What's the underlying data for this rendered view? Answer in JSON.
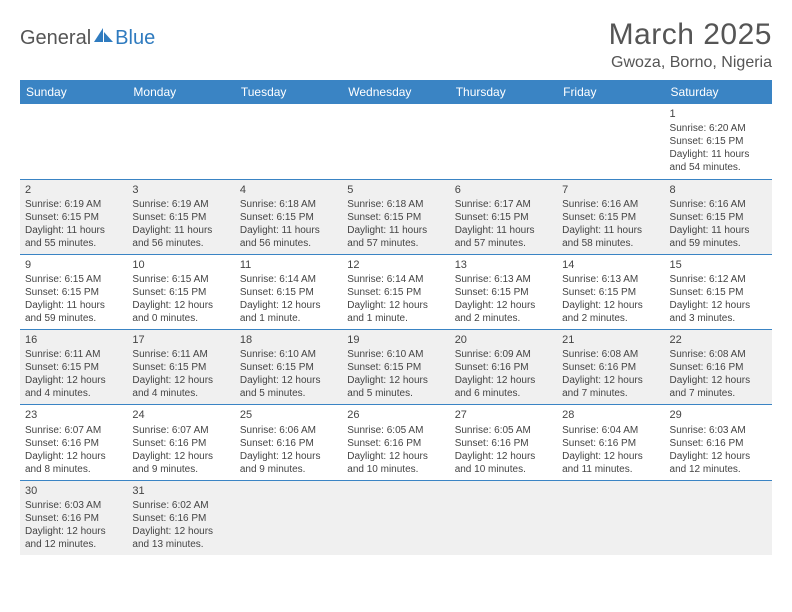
{
  "logo": {
    "text1": "General",
    "text2": "Blue"
  },
  "title": "March 2025",
  "location": "Gwoza, Borno, Nigeria",
  "colors": {
    "header_bg": "#3a84c4",
    "header_text": "#ffffff",
    "border": "#3a84c4",
    "shaded_bg": "#f0f0f0",
    "text": "#444444",
    "logo_gray": "#555555",
    "logo_blue": "#2f7bbf"
  },
  "weekdays": [
    "Sunday",
    "Monday",
    "Tuesday",
    "Wednesday",
    "Thursday",
    "Friday",
    "Saturday"
  ],
  "weeks": [
    [
      {
        "blank": true
      },
      {
        "blank": true
      },
      {
        "blank": true
      },
      {
        "blank": true
      },
      {
        "blank": true
      },
      {
        "blank": true
      },
      {
        "n": "1",
        "sr": "Sunrise: 6:20 AM",
        "ss": "Sunset: 6:15 PM",
        "dl": "Daylight: 11 hours and 54 minutes."
      }
    ],
    [
      {
        "n": "2",
        "sr": "Sunrise: 6:19 AM",
        "ss": "Sunset: 6:15 PM",
        "dl": "Daylight: 11 hours and 55 minutes.",
        "shaded": true
      },
      {
        "n": "3",
        "sr": "Sunrise: 6:19 AM",
        "ss": "Sunset: 6:15 PM",
        "dl": "Daylight: 11 hours and 56 minutes.",
        "shaded": true
      },
      {
        "n": "4",
        "sr": "Sunrise: 6:18 AM",
        "ss": "Sunset: 6:15 PM",
        "dl": "Daylight: 11 hours and 56 minutes.",
        "shaded": true
      },
      {
        "n": "5",
        "sr": "Sunrise: 6:18 AM",
        "ss": "Sunset: 6:15 PM",
        "dl": "Daylight: 11 hours and 57 minutes.",
        "shaded": true
      },
      {
        "n": "6",
        "sr": "Sunrise: 6:17 AM",
        "ss": "Sunset: 6:15 PM",
        "dl": "Daylight: 11 hours and 57 minutes.",
        "shaded": true
      },
      {
        "n": "7",
        "sr": "Sunrise: 6:16 AM",
        "ss": "Sunset: 6:15 PM",
        "dl": "Daylight: 11 hours and 58 minutes.",
        "shaded": true
      },
      {
        "n": "8",
        "sr": "Sunrise: 6:16 AM",
        "ss": "Sunset: 6:15 PM",
        "dl": "Daylight: 11 hours and 59 minutes.",
        "shaded": true
      }
    ],
    [
      {
        "n": "9",
        "sr": "Sunrise: 6:15 AM",
        "ss": "Sunset: 6:15 PM",
        "dl": "Daylight: 11 hours and 59 minutes."
      },
      {
        "n": "10",
        "sr": "Sunrise: 6:15 AM",
        "ss": "Sunset: 6:15 PM",
        "dl": "Daylight: 12 hours and 0 minutes."
      },
      {
        "n": "11",
        "sr": "Sunrise: 6:14 AM",
        "ss": "Sunset: 6:15 PM",
        "dl": "Daylight: 12 hours and 1 minute."
      },
      {
        "n": "12",
        "sr": "Sunrise: 6:14 AM",
        "ss": "Sunset: 6:15 PM",
        "dl": "Daylight: 12 hours and 1 minute."
      },
      {
        "n": "13",
        "sr": "Sunrise: 6:13 AM",
        "ss": "Sunset: 6:15 PM",
        "dl": "Daylight: 12 hours and 2 minutes."
      },
      {
        "n": "14",
        "sr": "Sunrise: 6:13 AM",
        "ss": "Sunset: 6:15 PM",
        "dl": "Daylight: 12 hours and 2 minutes."
      },
      {
        "n": "15",
        "sr": "Sunrise: 6:12 AM",
        "ss": "Sunset: 6:15 PM",
        "dl": "Daylight: 12 hours and 3 minutes."
      }
    ],
    [
      {
        "n": "16",
        "sr": "Sunrise: 6:11 AM",
        "ss": "Sunset: 6:15 PM",
        "dl": "Daylight: 12 hours and 4 minutes.",
        "shaded": true
      },
      {
        "n": "17",
        "sr": "Sunrise: 6:11 AM",
        "ss": "Sunset: 6:15 PM",
        "dl": "Daylight: 12 hours and 4 minutes.",
        "shaded": true
      },
      {
        "n": "18",
        "sr": "Sunrise: 6:10 AM",
        "ss": "Sunset: 6:15 PM",
        "dl": "Daylight: 12 hours and 5 minutes.",
        "shaded": true
      },
      {
        "n": "19",
        "sr": "Sunrise: 6:10 AM",
        "ss": "Sunset: 6:15 PM",
        "dl": "Daylight: 12 hours and 5 minutes.",
        "shaded": true
      },
      {
        "n": "20",
        "sr": "Sunrise: 6:09 AM",
        "ss": "Sunset: 6:16 PM",
        "dl": "Daylight: 12 hours and 6 minutes.",
        "shaded": true
      },
      {
        "n": "21",
        "sr": "Sunrise: 6:08 AM",
        "ss": "Sunset: 6:16 PM",
        "dl": "Daylight: 12 hours and 7 minutes.",
        "shaded": true
      },
      {
        "n": "22",
        "sr": "Sunrise: 6:08 AM",
        "ss": "Sunset: 6:16 PM",
        "dl": "Daylight: 12 hours and 7 minutes.",
        "shaded": true
      }
    ],
    [
      {
        "n": "23",
        "sr": "Sunrise: 6:07 AM",
        "ss": "Sunset: 6:16 PM",
        "dl": "Daylight: 12 hours and 8 minutes."
      },
      {
        "n": "24",
        "sr": "Sunrise: 6:07 AM",
        "ss": "Sunset: 6:16 PM",
        "dl": "Daylight: 12 hours and 9 minutes."
      },
      {
        "n": "25",
        "sr": "Sunrise: 6:06 AM",
        "ss": "Sunset: 6:16 PM",
        "dl": "Daylight: 12 hours and 9 minutes."
      },
      {
        "n": "26",
        "sr": "Sunrise: 6:05 AM",
        "ss": "Sunset: 6:16 PM",
        "dl": "Daylight: 12 hours and 10 minutes."
      },
      {
        "n": "27",
        "sr": "Sunrise: 6:05 AM",
        "ss": "Sunset: 6:16 PM",
        "dl": "Daylight: 12 hours and 10 minutes."
      },
      {
        "n": "28",
        "sr": "Sunrise: 6:04 AM",
        "ss": "Sunset: 6:16 PM",
        "dl": "Daylight: 12 hours and 11 minutes."
      },
      {
        "n": "29",
        "sr": "Sunrise: 6:03 AM",
        "ss": "Sunset: 6:16 PM",
        "dl": "Daylight: 12 hours and 12 minutes."
      }
    ],
    [
      {
        "n": "30",
        "sr": "Sunrise: 6:03 AM",
        "ss": "Sunset: 6:16 PM",
        "dl": "Daylight: 12 hours and 12 minutes.",
        "shaded": true
      },
      {
        "n": "31",
        "sr": "Sunrise: 6:02 AM",
        "ss": "Sunset: 6:16 PM",
        "dl": "Daylight: 12 hours and 13 minutes.",
        "shaded": true
      },
      {
        "blank": true,
        "shaded": true
      },
      {
        "blank": true,
        "shaded": true
      },
      {
        "blank": true,
        "shaded": true
      },
      {
        "blank": true,
        "shaded": true
      },
      {
        "blank": true,
        "shaded": true
      }
    ]
  ]
}
